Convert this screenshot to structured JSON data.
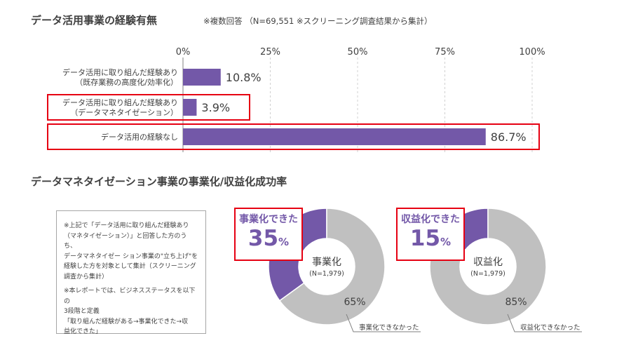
{
  "bar_section": {
    "title": "データ活用事業の経験有無",
    "note": "※複数回答 （N=69,551 ※スクリーニング調査結果から集計）"
  },
  "donut_section": {
    "title": "データマネタイゼーション事業の事業化/収益化成功率"
  },
  "note_box": {
    "para1": "※上記で「データ活用に取り組んだ経験あり\n（マネタイゼーション）」と回答した方のうち、\nデータマネタイゼー ション事業の\"立ち上げ\"を\n経験した方を対象として集計（スクリーニング\n調査から集計）",
    "para2": "※本レポートでは、ビジネスステータスを以下の\n3段階と定義\n「取り組んだ経験がある→事業化できた→収\n益化できた」"
  },
  "colors": {
    "bar": "#7358a8",
    "donut_success": "#7358a8",
    "donut_rest": "#c0c0c0",
    "highlight": "#e60012"
  },
  "chart_data": [
    {
      "type": "bar",
      "orientation": "horizontal",
      "categories": [
        "データ活用に取り組んだ経験あり\n（既存業務の高度化/効率化）",
        "データ活用に取り組んだ経験あり\n（データマネタイゼーション）",
        "データ活用の経験なし"
      ],
      "values": [
        10.8,
        3.9,
        86.7
      ],
      "value_labels": [
        "10.8%",
        "3.9%",
        "86.7%"
      ],
      "highlighted": [
        false,
        true,
        true
      ],
      "xlim": [
        0,
        100
      ],
      "ticks": [
        0,
        25,
        50,
        75,
        100
      ],
      "tick_labels": [
        "0%",
        "25%",
        "50%",
        "75%",
        "100%"
      ],
      "grid": true
    },
    {
      "type": "pie",
      "donut": true,
      "center_label": "事業化",
      "center_sub": "(N=1,979)",
      "callout_title": "事業化できた",
      "callout_value": "35",
      "callout_unit": "%",
      "slices": [
        {
          "label": "事業化できた",
          "value": 35
        },
        {
          "label": "事業化できなかった",
          "value": 65,
          "value_label": "65%"
        }
      ]
    },
    {
      "type": "pie",
      "donut": true,
      "center_label": "収益化",
      "center_sub": "(N=1,979)",
      "callout_title": "収益化できた",
      "callout_value": "15",
      "callout_unit": "%",
      "slices": [
        {
          "label": "収益化できた",
          "value": 15
        },
        {
          "label": "収益化できなかった",
          "value": 85,
          "value_label": "85%"
        }
      ]
    }
  ]
}
